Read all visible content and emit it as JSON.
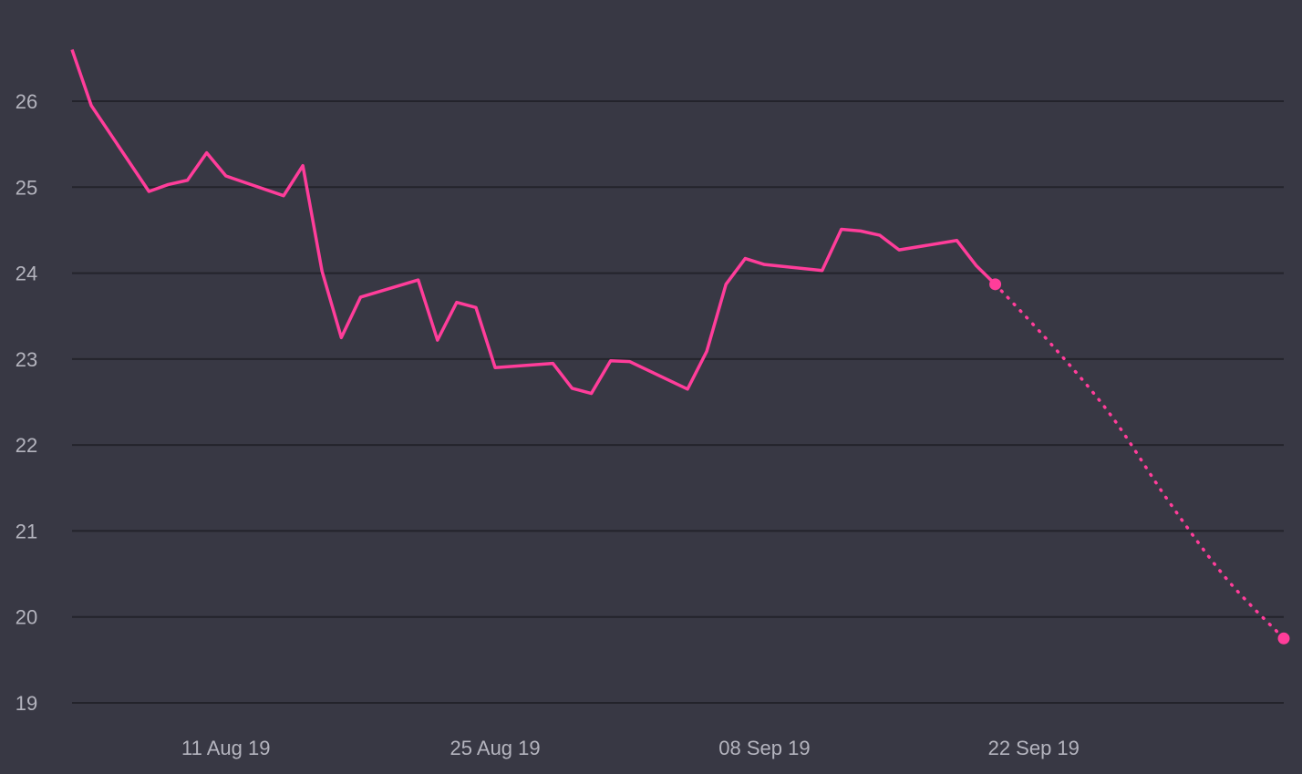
{
  "chart_data": {
    "type": "line",
    "title": "",
    "xlabel": "",
    "ylabel": "",
    "ylim": [
      19,
      26.6
    ],
    "xlim": [
      "2019-08-03",
      "2019-10-05"
    ],
    "yticks": [
      "19",
      "20",
      "21",
      "22",
      "23",
      "24",
      "25",
      "26"
    ],
    "xticks": [
      {
        "date": "2019-08-11",
        "label": "11 Aug 19"
      },
      {
        "date": "2019-08-25",
        "label": "25 Aug 19"
      },
      {
        "date": "2019-09-08",
        "label": "08 Sep 19"
      },
      {
        "date": "2019-09-22",
        "label": "22 Sep 19"
      }
    ],
    "grid": true,
    "colors": {
      "background": "#383844",
      "line": "#ff3d9a",
      "grid": "#23232b",
      "tick_text": "#b4b4be"
    },
    "series": [
      {
        "style": "solid",
        "x": [
          "2019-08-03",
          "2019-08-04",
          "2019-08-07",
          "2019-08-08",
          "2019-08-09",
          "2019-08-10",
          "2019-08-11",
          "2019-08-14",
          "2019-08-15",
          "2019-08-16",
          "2019-08-17",
          "2019-08-18",
          "2019-08-21",
          "2019-08-22",
          "2019-08-23",
          "2019-08-24",
          "2019-08-25",
          "2019-08-28",
          "2019-08-29",
          "2019-08-30",
          "2019-08-31",
          "2019-09-01",
          "2019-09-04",
          "2019-09-05",
          "2019-09-06",
          "2019-09-07",
          "2019-09-08",
          "2019-09-11",
          "2019-09-12",
          "2019-09-13",
          "2019-09-14",
          "2019-09-15",
          "2019-09-18",
          "2019-09-19",
          "2019-09-20"
        ],
        "y": [
          26.6,
          25.95,
          24.95,
          25.03,
          25.08,
          25.4,
          25.13,
          24.9,
          25.25,
          24.02,
          23.25,
          23.72,
          23.92,
          23.22,
          23.66,
          23.6,
          22.9,
          22.95,
          22.66,
          22.6,
          22.98,
          22.97,
          22.65,
          23.09,
          23.87,
          24.17,
          24.1,
          24.03,
          24.51,
          24.49,
          24.44,
          24.27,
          24.38,
          24.09,
          23.87
        ]
      },
      {
        "style": "dotted",
        "x": [
          "2019-09-20",
          "2019-09-23",
          "2019-09-26",
          "2019-09-29",
          "2019-10-02",
          "2019-10-05"
        ],
        "y": [
          23.87,
          23.15,
          22.35,
          21.35,
          20.45,
          19.75
        ]
      }
    ]
  }
}
